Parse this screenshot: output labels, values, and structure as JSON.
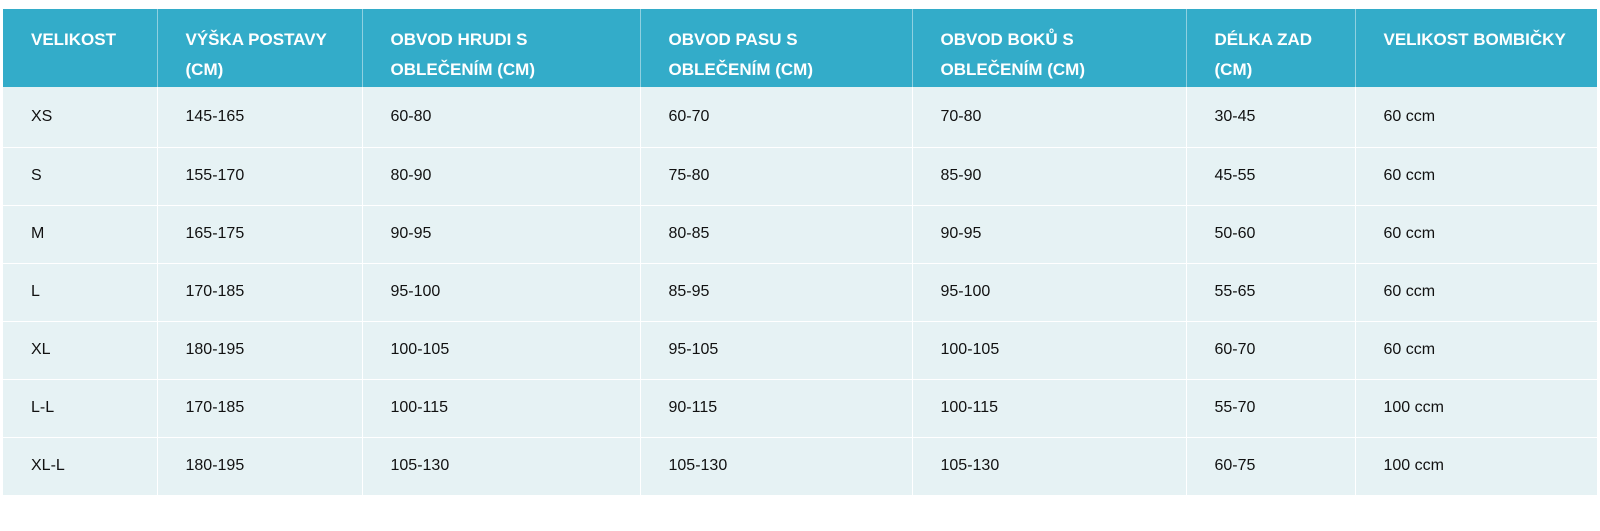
{
  "size_table": {
    "headers": [
      "VELIKOST",
      "VÝŠKA POSTAVY (CM)",
      "OBVOD HRUDI S OBLEČENÍM (CM)",
      "OBVOD PASU S OBLEČENÍM (CM)",
      "OBVOD BOKŮ S OBLEČENÍM (CM)",
      "DÉLKA ZAD (CM)",
      "VELIKOST BOMBIČKY"
    ],
    "rows": [
      [
        "XS",
        "145-165",
        "60-80",
        "60-70",
        "70-80",
        "30-45",
        "60 ccm"
      ],
      [
        "S",
        "155-170",
        "80-90",
        "75-80",
        "85-90",
        "45-55",
        "60 ccm"
      ],
      [
        "M",
        "165-175",
        "90-95",
        "80-85",
        "90-95",
        "50-60",
        "60 ccm"
      ],
      [
        "L",
        "170-185",
        "95-100",
        "85-95",
        "95-100",
        "55-65",
        "60 ccm"
      ],
      [
        "XL",
        "180-195",
        "100-105",
        "95-105",
        "100-105",
        "60-70",
        "60 ccm"
      ],
      [
        "L-L",
        "170-185",
        "100-115",
        "90-115",
        "100-115",
        "55-70",
        "100 ccm"
      ],
      [
        "XL-L",
        "180-195",
        "105-130",
        "105-130",
        "105-130",
        "60-75",
        "100 ccm"
      ]
    ]
  },
  "colors": {
    "header_background": "#33acc9",
    "header_text": "#ffffff",
    "cell_background": "#e6f2f4",
    "cell_text": "#111111"
  }
}
